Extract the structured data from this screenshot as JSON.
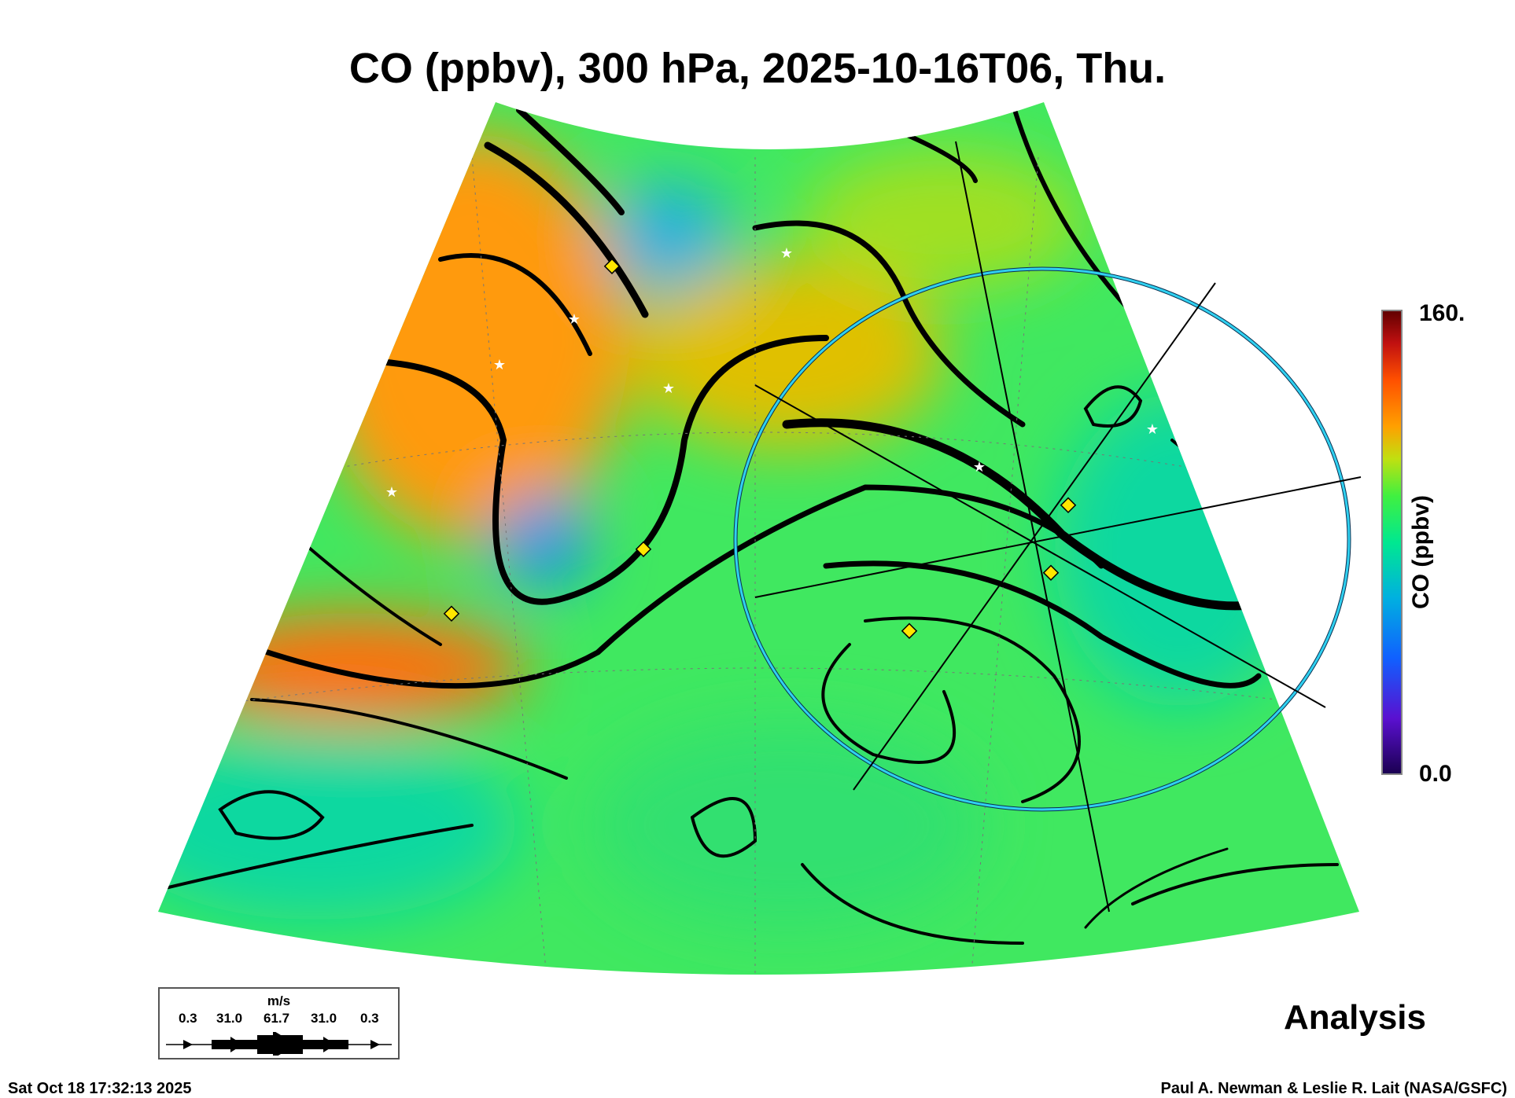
{
  "title": "CO (ppbv), 300 hPa, 2025-10-16T06, Thu.",
  "colorbar": {
    "max_label": "160.",
    "min_label": "0.0",
    "title": "CO (ppbv)",
    "min": 0,
    "max": 160,
    "colors": [
      "#1a0050",
      "#5a10d0",
      "#1060ff",
      "#00b0e0",
      "#00e890",
      "#40f040",
      "#a0e020",
      "#e8d000",
      "#ffa000",
      "#ff5000",
      "#c01010",
      "#600000"
    ]
  },
  "legend": {
    "unit": "m/s",
    "values": [
      "0.3",
      "31.0",
      "61.7",
      "31.0",
      "0.3"
    ]
  },
  "mode_label": "Analysis",
  "footer": {
    "timestamp": "Sat Oct 18 17:32:13 2025",
    "credit": "Paul A. Newman & Leslie R. Lait (NASA/GSFC)"
  }
}
